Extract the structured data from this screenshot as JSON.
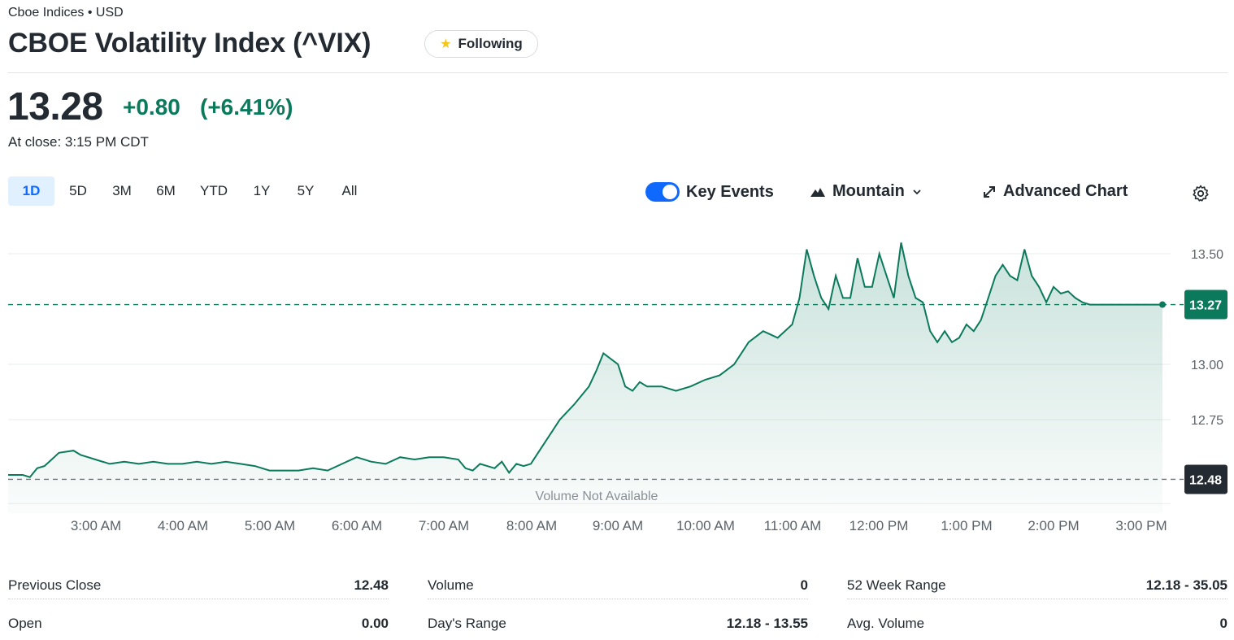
{
  "header": {
    "subtitle": "Cboe Indices • USD",
    "title": "CBOE Volatility Index (^VIX)",
    "follow_label": "Following",
    "follow_icon": "star-icon"
  },
  "quote": {
    "price": "13.28",
    "change": "+0.80",
    "change_pct": "(+6.41%)",
    "close_time": "At close: 3:15 PM CDT",
    "change_color": "#0b7a5c"
  },
  "range_tabs": [
    {
      "label": "1D",
      "active": true
    },
    {
      "label": "5D"
    },
    {
      "label": "3M"
    },
    {
      "label": "6M"
    },
    {
      "label": "YTD"
    },
    {
      "label": "1Y"
    },
    {
      "label": "5Y"
    },
    {
      "label": "All"
    }
  ],
  "toolbar": {
    "key_events_label": "Key Events",
    "key_events_on": true,
    "chart_type_label": "Mountain",
    "advanced_chart_label": "Advanced Chart",
    "settings_icon": "gear-icon",
    "mountain_icon": "mountain-icon",
    "chevron_icon": "chevron-down-icon",
    "expand_icon": "expand-icon"
  },
  "chart_data": {
    "type": "area",
    "x_labels": [
      "3:00 AM",
      "4:00 AM",
      "5:00 AM",
      "6:00 AM",
      "7:00 AM",
      "8:00 AM",
      "9:00 AM",
      "10:00 AM",
      "11:00 AM",
      "12:00 PM",
      "1:00 PM",
      "2:00 PM",
      "3:00 PM"
    ],
    "y_ticks": [
      12.75,
      13.0,
      13.5
    ],
    "ylim": [
      12.4,
      13.6
    ],
    "previous_close": 12.48,
    "previous_close_label": "12.48",
    "current_value": 13.27,
    "current_label": "13.27",
    "volume_note": "Volume Not Available",
    "line_color": "#0b7a5c",
    "series": [
      {
        "x": [
          "2:00",
          "2:10",
          "2:15",
          "2:20",
          "2:25",
          "2:30",
          "2:35",
          "2:45",
          "2:50",
          "2:55",
          "3:00",
          "3:10",
          "3:20",
          "3:30",
          "3:40",
          "3:50",
          "4:00",
          "4:10",
          "4:20",
          "4:30",
          "4:40",
          "4:50",
          "5:00",
          "5:10",
          "5:20",
          "5:30",
          "5:40",
          "5:50",
          "6:00",
          "6:10",
          "6:20",
          "6:30",
          "6:40",
          "6:50",
          "7:00",
          "7:10",
          "7:15",
          "7:20",
          "7:25",
          "7:30",
          "7:35",
          "7:40",
          "7:45",
          "7:50",
          "7:55",
          "8:00",
          "8:05",
          "8:15",
          "8:20",
          "8:30",
          "8:40",
          "8:45",
          "8:50",
          "9:00",
          "9:05",
          "9:10",
          "9:15",
          "9:20",
          "9:30",
          "9:40",
          "9:50",
          "10:00",
          "10:10",
          "10:20",
          "10:30",
          "10:40",
          "10:50",
          "11:00",
          "11:05",
          "11:10",
          "11:15",
          "11:20",
          "11:25",
          "11:30",
          "11:35",
          "11:40",
          "11:45",
          "11:50",
          "11:55",
          "12:00",
          "12:05",
          "12:10",
          "12:15",
          "12:20",
          "12:25",
          "12:30",
          "12:35",
          "12:40",
          "12:45",
          "12:50",
          "12:55",
          "13:00",
          "13:05",
          "13:10",
          "13:15",
          "13:20",
          "13:25",
          "13:30",
          "13:35",
          "13:40",
          "13:45",
          "13:50",
          "13:55",
          "14:00",
          "14:05",
          "14:10",
          "14:15",
          "14:20",
          "14:25",
          "14:30",
          "14:35",
          "14:40",
          "14:45",
          "14:50",
          "14:55",
          "15:00",
          "15:05",
          "15:10",
          "15:15"
        ],
        "y": [
          12.5,
          12.5,
          12.49,
          12.53,
          12.54,
          12.57,
          12.6,
          12.61,
          12.59,
          12.58,
          12.57,
          12.55,
          12.56,
          12.55,
          12.56,
          12.55,
          12.55,
          12.56,
          12.55,
          12.56,
          12.55,
          12.54,
          12.52,
          12.52,
          12.52,
          12.53,
          12.52,
          12.55,
          12.58,
          12.56,
          12.55,
          12.58,
          12.57,
          12.58,
          12.58,
          12.57,
          12.53,
          12.52,
          12.55,
          12.54,
          12.53,
          12.56,
          12.51,
          12.55,
          12.54,
          12.55,
          12.6,
          12.7,
          12.75,
          12.82,
          12.9,
          12.97,
          13.05,
          13.0,
          12.9,
          12.88,
          12.92,
          12.9,
          12.9,
          12.88,
          12.9,
          12.93,
          12.95,
          13.0,
          13.1,
          13.15,
          13.12,
          13.18,
          13.3,
          13.52,
          13.4,
          13.3,
          13.25,
          13.4,
          13.3,
          13.3,
          13.48,
          13.35,
          13.35,
          13.5,
          13.4,
          13.3,
          13.55,
          13.4,
          13.3,
          13.28,
          13.15,
          13.1,
          13.15,
          13.1,
          13.12,
          13.18,
          13.15,
          13.2,
          13.3,
          13.4,
          13.45,
          13.4,
          13.38,
          13.52,
          13.4,
          13.35,
          13.28,
          13.35,
          13.32,
          13.33,
          13.3,
          13.28,
          13.27,
          13.27,
          13.27,
          13.27,
          13.27,
          13.27,
          13.27,
          13.27,
          13.27,
          13.27,
          13.27
        ]
      }
    ]
  },
  "stats": [
    {
      "label": "Previous Close",
      "value": "12.48"
    },
    {
      "label": "Open",
      "value": "0.00"
    },
    {
      "label": "Volume",
      "value": "0"
    },
    {
      "label": "Day's Range",
      "value": "12.18 - 13.55"
    },
    {
      "label": "52 Week Range",
      "value": "12.18 - 35.05"
    },
    {
      "label": "Avg. Volume",
      "value": "0"
    }
  ]
}
